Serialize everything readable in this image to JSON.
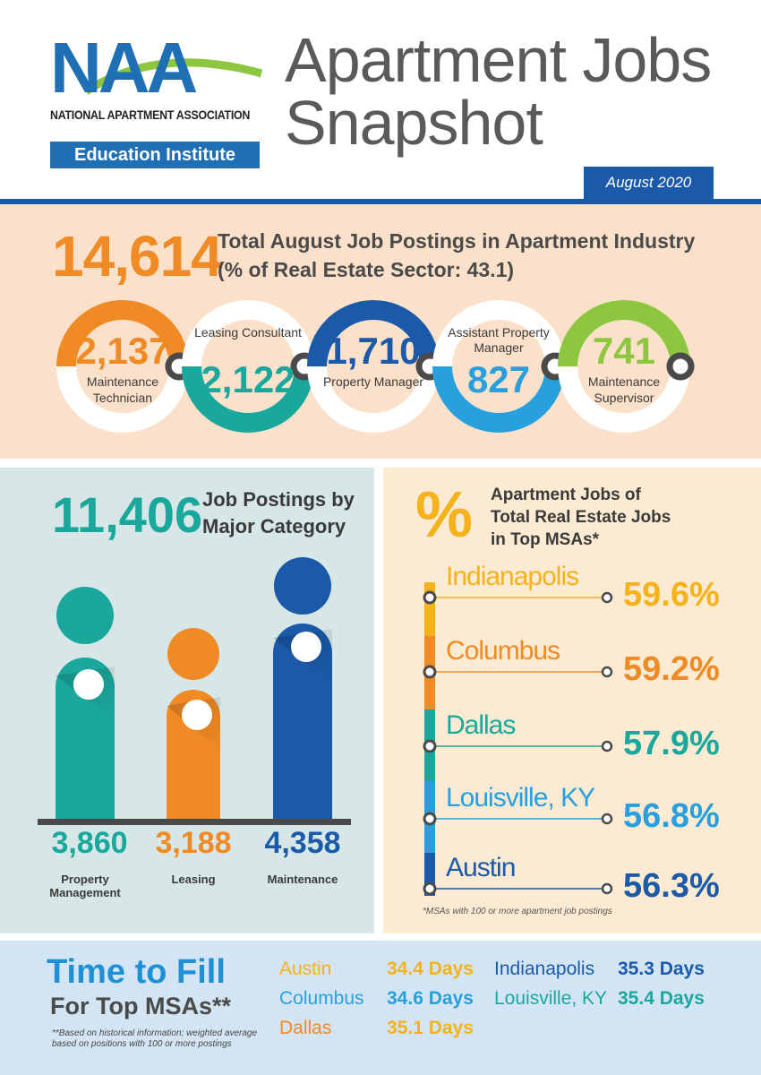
{
  "header": {
    "logo_text": "NAA",
    "association": "NATIONAL APARTMENT ASSOCIATION",
    "institute": "Education Institute",
    "title_line1": "Apartment Jobs",
    "title_line2": "Snapshot",
    "date": "August 2020"
  },
  "total": {
    "value": "14,614",
    "line1": "Total  August Job Postings in Apartment Industry",
    "line2": "(% of Real Estate Sector: 43.1)"
  },
  "roles": [
    {
      "value": "2,137",
      "label_before": "",
      "label_after": "Maintenance Technician",
      "color": "#f08a24",
      "arc": "top",
      "fraction": 0.146
    },
    {
      "value": "2,122",
      "label_before": "Leasing Consultant",
      "label_after": "",
      "color": "#1ba89c",
      "arc": "bottom",
      "fraction": 0.145
    },
    {
      "value": "1,710",
      "label_before": "",
      "label_after": "Property Manager",
      "color": "#1a5aa8",
      "arc": "top",
      "fraction": 0.117
    },
    {
      "value": "827",
      "label_before": "Assistant Property Manager",
      "label_after": "",
      "color": "#29a0de",
      "arc": "bottom",
      "fraction": 0.057
    },
    {
      "value": "741",
      "label_before": "",
      "label_after": "Maintenance Supervisor",
      "color": "#8dc63f",
      "arc": "top",
      "fraction": 0.051
    }
  ],
  "categories": {
    "value": "11,406",
    "line1": "Job Postings by",
    "line2": "Major Category",
    "items": [
      {
        "value": "3,860",
        "label": "Property Management",
        "color": "#1ba89c"
      },
      {
        "value": "3,188",
        "label": "Leasing",
        "color": "#f08a24"
      },
      {
        "value": "4,358",
        "label": "Maintenance",
        "color": "#1a5aa8"
      }
    ]
  },
  "msa": {
    "symbol": "%",
    "heading_l1": "Apartment Jobs of",
    "heading_l2": "Total Real Estate Jobs",
    "heading_l3": "in Top MSAs*",
    "items": [
      {
        "city": "Indianapolis",
        "pct": "59.6%",
        "city_color": "#f5b21b",
        "pct_color": "#f5b21b"
      },
      {
        "city": "Columbus",
        "pct": "59.2%",
        "city_color": "#f08a24",
        "pct_color": "#f08a24"
      },
      {
        "city": "Dallas",
        "pct": "57.9%",
        "city_color": "#1ba89c",
        "pct_color": "#1ba89c"
      },
      {
        "city": "Louisville, KY",
        "pct": "56.8%",
        "city_color": "#29a0de",
        "pct_color": "#29a0de"
      },
      {
        "city": "Austin",
        "pct": "56.3%",
        "city_color": "#1a5aa8",
        "pct_color": "#1a5aa8"
      }
    ],
    "note": "*MSAs with 100 or more apartment job postings"
  },
  "time_to_fill": {
    "title": "Time to Fill",
    "subtitle": "For Top MSAs**",
    "note": "**Based on historical information; weighted average based on positions with 100 or more postings",
    "col1": [
      {
        "city": "Austin",
        "days": "34.4 Days",
        "city_color": "#f5b21b",
        "days_color": "#f5b21b"
      },
      {
        "city": "Columbus",
        "days": "34.6 Days",
        "city_color": "#29a0de",
        "days_color": "#29a0de"
      },
      {
        "city": "Dallas",
        "days": "35.1 Days",
        "city_color": "#f08a24",
        "days_color": "#f5b21b"
      }
    ],
    "col2": [
      {
        "city": "Indianapolis",
        "days": "35.3 Days",
        "city_color": "#1a5aa8",
        "days_color": "#1a5aa8"
      },
      {
        "city": "Louisville, KY",
        "days": "35.4 Days",
        "city_color": "#1ba89c",
        "days_color": "#1ba89c"
      }
    ]
  }
}
